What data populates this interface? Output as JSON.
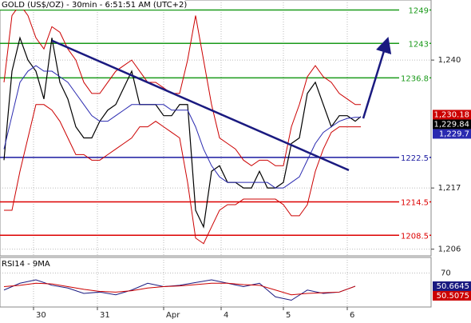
{
  "chart_data": [
    {
      "type": "line",
      "title": "GOLD (US$/OZ) - 30min - 6:51:51 AM (UTC+2)",
      "x": [
        0.5,
        1.5,
        2.5,
        3.5,
        4.5,
        5.5,
        6.5,
        7.5,
        8.5,
        9.5,
        10.5,
        11.5,
        12.5,
        13.5,
        14.5,
        15.5,
        16.5,
        17.5,
        18.5,
        19.5,
        20.5,
        21.5,
        22.5,
        23.5,
        24.5,
        25.5,
        26.5,
        27.5,
        28.5,
        29.5,
        30.5,
        31.5,
        32.5,
        33.5,
        34.5,
        35.5,
        36.5,
        37.5,
        38.5,
        39.5,
        40.5,
        41.5,
        42.5,
        43.5,
        44.5,
        45.2
      ],
      "xlim": [
        0,
        54
      ],
      "xticks": [
        {
          "value": 4.2,
          "label": "30"
        },
        {
          "value": 12.2,
          "label": "31"
        },
        {
          "value": 20.5,
          "label": "Apr"
        },
        {
          "value": 27.7,
          "label": "4"
        },
        {
          "value": 35.5,
          "label": "5"
        },
        {
          "value": 43.5,
          "label": "6"
        }
      ],
      "ylim": [
        1204.8,
        1250.8
      ],
      "yticks": [
        {
          "value": 1240,
          "label": "1,240"
        },
        {
          "value": 1217,
          "label": "1,217"
        },
        {
          "value": 1206,
          "label": "1,206"
        }
      ],
      "series": [
        {
          "color": "#000000",
          "values": [
            1222,
            1238,
            1244,
            1240,
            1238,
            1233,
            1244,
            1236,
            1233,
            1228,
            1226,
            1226,
            1229,
            1231,
            1232,
            1235,
            1238,
            1232,
            1232,
            1232,
            1230,
            1230,
            1232,
            1232,
            1213,
            1210,
            1220,
            1221,
            1218,
            1218,
            1217,
            1217,
            1220,
            1217,
            1217,
            1218,
            1225,
            1226,
            1234,
            1236,
            1232,
            1228,
            1230,
            1230,
            1229,
            1229.84
          ]
        },
        {
          "color": "#2a2ab0",
          "values": [
            1224,
            1230,
            1236,
            1238,
            1239,
            1238,
            1238,
            1237,
            1236,
            1234,
            1232,
            1230,
            1229,
            1229,
            1230,
            1231,
            1232,
            1232,
            1232,
            1232,
            1232,
            1231,
            1231,
            1231,
            1228,
            1224,
            1221,
            1219,
            1218,
            1218,
            1218,
            1218,
            1218,
            1218,
            1217,
            1217,
            1218,
            1219,
            1222,
            1225,
            1227,
            1228,
            1229,
            1229.5,
            1229.7,
            1229.7
          ]
        },
        {
          "color": "#cc0000",
          "values": [
            1236,
            1248,
            1250,
            1248,
            1244,
            1242,
            1246,
            1245,
            1242,
            1240,
            1236,
            1234,
            1234,
            1236,
            1238,
            1239,
            1240,
            1238,
            1236,
            1236,
            1235,
            1234,
            1234,
            1240,
            1248,
            1240,
            1232,
            1226,
            1225,
            1224,
            1222,
            1221,
            1222,
            1222,
            1221,
            1221,
            1228,
            1232,
            1237,
            1239,
            1237,
            1236,
            1234,
            1233,
            1232,
            1232
          ]
        },
        {
          "color": "#cc0000",
          "values": [
            1213,
            1213,
            1220,
            1226,
            1232,
            1232,
            1231,
            1229,
            1226,
            1223,
            1223,
            1222,
            1222,
            1223,
            1224,
            1225,
            1226,
            1228,
            1228,
            1229,
            1228,
            1227,
            1226,
            1218,
            1208,
            1207,
            1210,
            1213,
            1214,
            1214,
            1215,
            1215,
            1215,
            1215,
            1215,
            1214,
            1212,
            1212,
            1214,
            1220,
            1224,
            1227,
            1228,
            1228,
            1228,
            1228
          ]
        }
      ],
      "levels": {
        "values": [
          1249,
          1243,
          1236.8,
          1222.5,
          1214.5,
          1208.5
        ],
        "colors": [
          "#1a9a1a",
          "#1a9a1a",
          "#1a9a1a",
          "#1a1aa0",
          "#dd0000",
          "#dd0000"
        ]
      },
      "trendline": {
        "x": [
          6.5,
          43.7
        ],
        "values": [
          1243.5,
          1220.2
        ],
        "color": "#1a1a80"
      },
      "arrow": {
        "x": [
          45.5,
          48.5
        ],
        "values": [
          1229.5,
          1243.5
        ],
        "color": "#1a1a80"
      },
      "price_labels": [
        {
          "value": 1230.18,
          "label": "1,230.18",
          "color": "#cc0000"
        },
        {
          "value": 1229.84,
          "label": "1,229.84",
          "color": "#000000"
        },
        {
          "value": 1229.7,
          "label": "1,229.7",
          "color": "#2a2ab0"
        }
      ]
    },
    {
      "type": "line",
      "title": "RSI14 - 9MA",
      "x": [
        0.5,
        2.5,
        4.5,
        6.5,
        8.5,
        10.5,
        12.5,
        14.5,
        16.5,
        18.5,
        20.5,
        22.5,
        24.5,
        26.5,
        28.5,
        30.5,
        32.5,
        34.5,
        36.5,
        38.5,
        40.5,
        42.5,
        44.5
      ],
      "ylim": [
        20,
        93
      ],
      "yticks": [
        70
      ],
      "series": [
        {
          "color": "#1a1a80",
          "values": [
            45,
            55,
            60,
            52,
            48,
            40,
            42,
            38,
            45,
            55,
            50,
            52,
            56,
            60,
            55,
            50,
            55,
            35,
            30,
            45,
            40,
            42,
            50.6645
          ]
        },
        {
          "color": "#cc0000",
          "values": [
            50,
            52,
            55,
            54,
            50,
            46,
            43,
            42,
            44,
            48,
            50,
            51,
            53,
            55,
            55,
            53,
            52,
            45,
            38,
            40,
            41,
            42,
            50.5075
          ]
        }
      ]
    }
  ]
}
